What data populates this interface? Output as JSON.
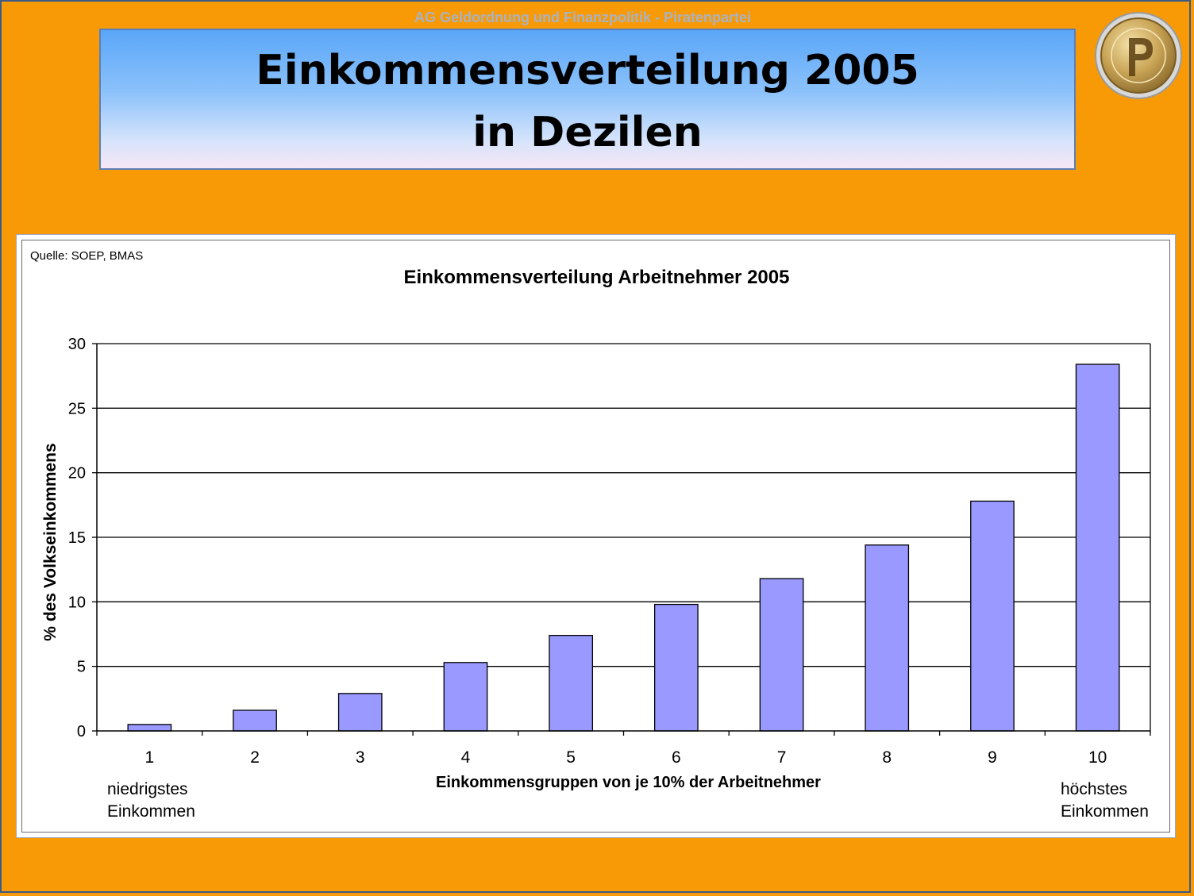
{
  "header": {
    "org": "AG Geldordnung und Finanzpolitik - Piratenpartei",
    "title_line1": "Einkommensverteilung  2005",
    "title_line2": "in Dezilen"
  },
  "colors": {
    "background": "#f89a05",
    "bar": "#9999ff",
    "title_gradient_top": "#5aa6f8",
    "title_gradient_bottom": "#f6e6f6"
  },
  "icons": {
    "logo": "pirate-party-coin-icon"
  },
  "chart": {
    "source": "Quelle: SOEP, BMAS",
    "note_low_line1": "niedrigstes",
    "note_low_line2": "Einkommen",
    "note_high_line1": "höchstes",
    "note_high_line2": "Einkommen"
  },
  "chart_data": {
    "type": "bar",
    "title": "Einkommensverteilung Arbeitnehmer 2005",
    "xlabel": "Einkommensgruppen von je 10% der Arbeitnehmer",
    "ylabel": "% des Volkseinkommens",
    "categories": [
      "1",
      "2",
      "3",
      "4",
      "5",
      "6",
      "7",
      "8",
      "9",
      "10"
    ],
    "values": [
      0.5,
      1.6,
      2.9,
      5.3,
      7.4,
      9.8,
      11.8,
      14.4,
      17.8,
      28.4
    ],
    "ylim": [
      0,
      30
    ],
    "yticks": [
      0,
      5,
      10,
      15,
      20,
      25,
      30
    ],
    "grid": true,
    "legend": "none"
  }
}
